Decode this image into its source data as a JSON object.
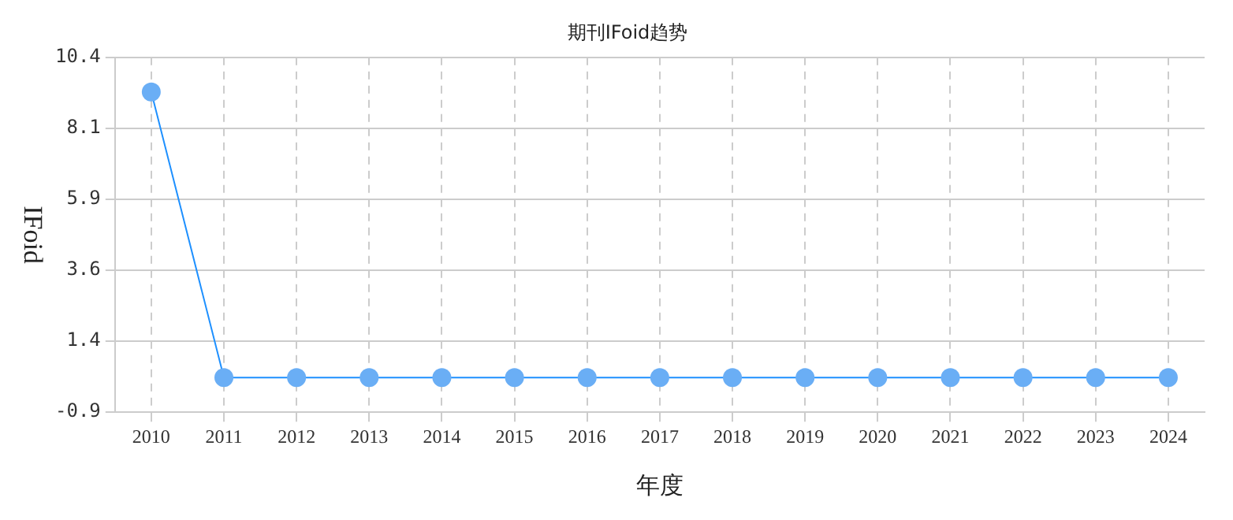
{
  "chart_data": {
    "type": "line",
    "title": "期刊IFoid趋势",
    "xlabel": "年度",
    "ylabel": "IFoid",
    "categories": [
      "2010",
      "2011",
      "2012",
      "2013",
      "2014",
      "2015",
      "2016",
      "2017",
      "2018",
      "2019",
      "2020",
      "2021",
      "2022",
      "2023",
      "2024"
    ],
    "series": [
      {
        "color": "#1e90ff",
        "values": [
          9.3,
          0.2,
          0.2,
          0.2,
          0.2,
          0.2,
          0.2,
          0.2,
          0.2,
          0.2,
          0.2,
          0.2,
          0.2,
          0.2,
          0.2
        ]
      }
    ],
    "ylim": [
      -0.9,
      10.4
    ],
    "yticks": [
      -0.9,
      {
        "value": 1.36,
        "label": "1.4"
      },
      {
        "value": 3.62,
        "label": "3.6"
      },
      {
        "value": 5.88,
        "label": "5.9"
      },
      {
        "value": 8.14,
        "label": "8.1"
      },
      10.4
    ],
    "grid": true,
    "marker": "circle",
    "line_style": "solid",
    "legend": false
  }
}
